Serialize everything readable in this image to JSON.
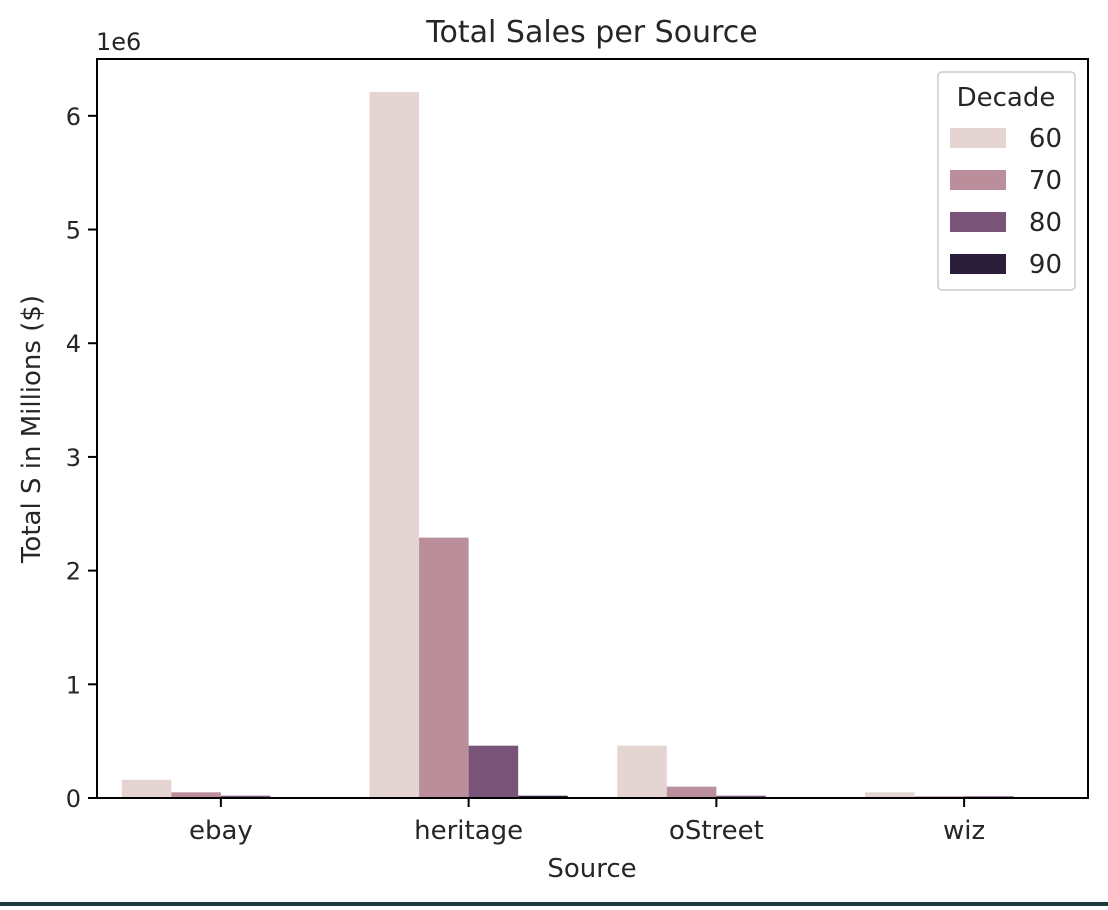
{
  "chart_data": {
    "type": "bar",
    "title": "Total Sales per Source",
    "xlabel": "Source",
    "ylabel": "Total S in Millions ($)",
    "y_offset_label": "1e6",
    "categories": [
      "ebay",
      "heritage",
      "oStreet",
      "wiz"
    ],
    "ylim": [
      0,
      6500000
    ],
    "yticks": [
      {
        "value": 0,
        "label": "0"
      },
      {
        "value": 1000000,
        "label": "1"
      },
      {
        "value": 2000000,
        "label": "2"
      },
      {
        "value": 3000000,
        "label": "3"
      },
      {
        "value": 4000000,
        "label": "4"
      },
      {
        "value": 5000000,
        "label": "5"
      },
      {
        "value": 6000000,
        "label": "6"
      }
    ],
    "legend": {
      "title": "Decade",
      "placement": "top-right"
    },
    "grid": false,
    "series": [
      {
        "name": "60",
        "color": "#e5d5d2",
        "values": [
          160000,
          6210000,
          460000,
          50000
        ]
      },
      {
        "name": "70",
        "color": "#bb8e9b",
        "values": [
          50000,
          2290000,
          100000,
          15000
        ]
      },
      {
        "name": "80",
        "color": "#7a5378",
        "values": [
          20000,
          460000,
          20000,
          15000
        ]
      },
      {
        "name": "90",
        "color": "#2b1e3a",
        "values": [
          0,
          20000,
          0,
          0
        ]
      }
    ]
  }
}
